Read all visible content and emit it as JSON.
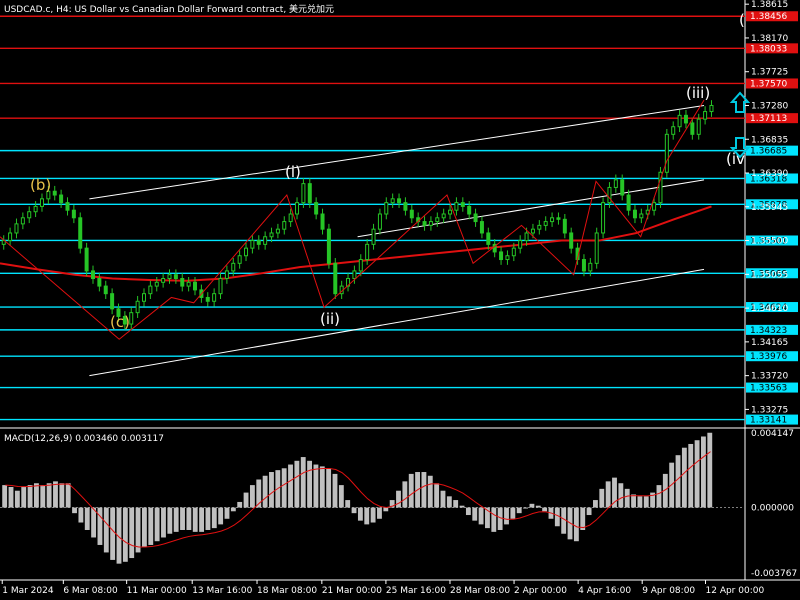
{
  "header": {
    "title": "USDCAD.c, H4:  US Dollar vs Canadian Dollar Forward contract, 美元兑加元"
  },
  "colors": {
    "background": "#000000",
    "candle": "#26c526",
    "red_line": "#e01010",
    "cyan_line": "#00e5ff",
    "channel": "#ffffff",
    "yellow_label": "#e8c24a",
    "macd_hist": "#c0c0c0",
    "macd_signal": "#e01010",
    "arrow": "#00c8e0"
  },
  "chart_data": {
    "type": "candlestick",
    "symbol": "USDCAD.c",
    "timeframe": "H4",
    "ylim": [
      1.3303,
      1.3867
    ],
    "y_axis_labels": [
      "1.38615",
      "1.38170",
      "1.37725",
      "1.37280",
      "1.36835",
      "1.36390",
      "1.35945",
      "1.35500",
      "1.35055",
      "1.34610",
      "1.34165",
      "1.33720",
      "1.33275"
    ],
    "x_axis_labels": [
      "1 Mar 2024",
      "6 Mar 08:00",
      "11 Mar 00:00",
      "13 Mar 16:00",
      "18 Mar 08:00",
      "21 Mar 00:00",
      "25 Mar 16:00",
      "28 Mar 08:00",
      "2 Apr 00:00",
      "4 Apr 16:00",
      "9 Apr 08:00",
      "12 Apr 00:00"
    ],
    "closes": [
      1.355,
      1.356,
      1.3572,
      1.358,
      1.3588,
      1.3595,
      1.3605,
      1.3615,
      1.361,
      1.36,
      1.359,
      1.358,
      1.354,
      1.351,
      1.35,
      1.349,
      1.348,
      1.346,
      1.345,
      1.344,
      1.3455,
      1.347,
      1.348,
      1.349,
      1.3495,
      1.35,
      1.3505,
      1.35,
      1.349,
      1.3495,
      1.3485,
      1.3475,
      1.347,
      1.348,
      1.35,
      1.351,
      1.352,
      1.353,
      1.354,
      1.355,
      1.3545,
      1.3555,
      1.356,
      1.3565,
      1.3575,
      1.3585,
      1.36,
      1.3625,
      1.36,
      1.3585,
      1.3565,
      1.352,
      1.348,
      1.349,
      1.35,
      1.351,
      1.3525,
      1.3545,
      1.3565,
      1.3585,
      1.36,
      1.3605,
      1.36,
      1.359,
      1.358,
      1.3575,
      1.357,
      1.3575,
      1.358,
      1.3585,
      1.359,
      1.36,
      1.3595,
      1.3585,
      1.3575,
      1.356,
      1.3545,
      1.3535,
      1.3525,
      1.353,
      1.354,
      1.355,
      1.356,
      1.3565,
      1.357,
      1.3575,
      1.358,
      1.3578,
      1.356,
      1.354,
      1.3525,
      1.351,
      1.352,
      1.356,
      1.36,
      1.362,
      1.363,
      1.361,
      1.359,
      1.358,
      1.3585,
      1.359,
      1.36,
      1.364,
      1.369,
      1.37,
      1.3715,
      1.3705,
      1.369,
      1.371,
      1.372,
      1.3728
    ],
    "horizontal_levels": [
      {
        "price": "1.38456",
        "color": "red"
      },
      {
        "price": "1.38033",
        "color": "red"
      },
      {
        "price": "1.37570",
        "color": "red"
      },
      {
        "price": "1.37113",
        "color": "red"
      },
      {
        "price": "1.36685",
        "color": "cyan"
      },
      {
        "price": "1.36318",
        "color": "cyan"
      },
      {
        "price": "1.35978",
        "color": "cyan"
      },
      {
        "price": "1.35501",
        "color": "cyan"
      },
      {
        "price": "1.35069",
        "color": "cyan"
      },
      {
        "price": "1.34624",
        "color": "cyan"
      },
      {
        "price": "1.34323",
        "color": "cyan"
      },
      {
        "price": "1.33976",
        "color": "cyan"
      },
      {
        "price": "1.33563",
        "color": "cyan"
      },
      {
        "price": "1.33141",
        "color": "cyan"
      }
    ],
    "channel_lines": [
      {
        "from": [
          0.12,
          1.3605
        ],
        "to": [
          0.945,
          1.3728
        ]
      },
      {
        "from": [
          0.12,
          1.3372
        ],
        "to": [
          0.945,
          1.3512
        ]
      },
      {
        "from": [
          0.48,
          1.3555
        ],
        "to": [
          0.945,
          1.363
        ]
      }
    ],
    "wave_path": [
      [
        0.0,
        1.3555
      ],
      [
        0.16,
        1.342
      ],
      [
        0.23,
        1.3475
      ],
      [
        0.26,
        1.3468
      ],
      [
        0.385,
        1.361
      ],
      [
        0.435,
        1.3462
      ],
      [
        0.6,
        1.361
      ],
      [
        0.635,
        1.352
      ],
      [
        0.7,
        1.357
      ],
      [
        0.77,
        1.3505
      ],
      [
        0.8,
        1.3628
      ],
      [
        0.86,
        1.3555
      ],
      [
        0.895,
        1.3655
      ],
      [
        0.945,
        1.3735
      ]
    ],
    "wave_labels": [
      "(b)",
      "(c)",
      "(i)",
      "(ii)",
      "(iii)",
      "(iv"
    ],
    "moving_average": [
      1.352,
      1.3512,
      1.3505,
      1.35,
      1.3498,
      1.3497,
      1.35,
      1.3507,
      1.3515,
      1.352,
      1.3525,
      1.353,
      1.3535,
      1.354,
      1.3545,
      1.355,
      1.355,
      1.356,
      1.3578,
      1.3595
    ],
    "macd": {
      "label": "MACD(12,26,9) 0.003460 0.003117",
      "scale_labels": [
        "0.004147",
        "0.000000",
        "-0.003767"
      ],
      "ylim": [
        -0.003767,
        0.004147
      ],
      "histogram": [
        0.0012,
        0.0011,
        0.0009,
        0.0011,
        0.0012,
        0.0013,
        0.0012,
        0.0013,
        0.0014,
        0.0013,
        0.0013,
        -0.0003,
        -0.0008,
        -0.0012,
        -0.0016,
        -0.002,
        -0.0024,
        -0.0028,
        -0.003,
        -0.0029,
        -0.0027,
        -0.0024,
        -0.0021,
        -0.002,
        -0.0018,
        -0.0016,
        -0.0014,
        -0.0013,
        -0.0012,
        -0.0012,
        -0.0013,
        -0.0013,
        -0.0012,
        -0.0011,
        -0.0009,
        -0.0006,
        -0.0002,
        0.0003,
        0.0008,
        0.0012,
        0.0015,
        0.0017,
        0.0019,
        0.002,
        0.0021,
        0.0023,
        0.0025,
        0.0027,
        0.0025,
        0.0023,
        0.0022,
        0.0021,
        0.0018,
        0.0012,
        0.0004,
        -0.0003,
        -0.0007,
        -0.0009,
        -0.0008,
        -0.0006,
        -0.0002,
        0.0004,
        0.0009,
        0.0014,
        0.0018,
        0.0019,
        0.0019,
        0.0017,
        0.0013,
        0.0009,
        0.0006,
        0.0004,
        0.0001,
        -0.0004,
        -0.0007,
        -0.0009,
        -0.0011,
        -0.0013,
        -0.0012,
        -0.0009,
        -0.0006,
        -0.0003,
        0.0,
        0.0002,
        0.0001,
        -0.0002,
        -0.0006,
        -0.001,
        -0.0014,
        -0.0017,
        -0.0018,
        -0.0012,
        -0.0004,
        0.0004,
        0.001,
        0.0014,
        0.0016,
        0.0013,
        0.001,
        0.0007,
        0.0006,
        0.0006,
        0.0008,
        0.0012,
        0.0018,
        0.0024,
        0.0028,
        0.0032,
        0.0034,
        0.0036,
        0.0038,
        0.004
      ]
    }
  }
}
